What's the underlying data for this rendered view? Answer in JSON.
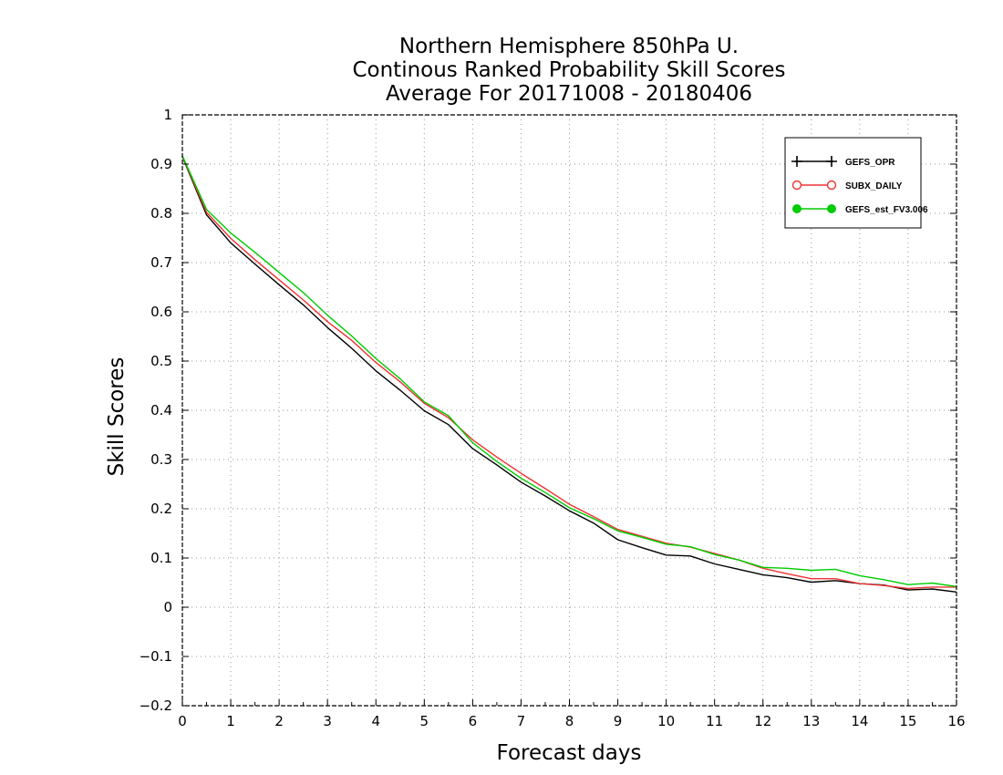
{
  "chart_data": {
    "type": "line",
    "title_lines": [
      "Northern Hemisphere 850hPa U.",
      "Continous Ranked Probability Skill Scores",
      "Average For 20171008 - 20180406"
    ],
    "xlabel": "Forecast days",
    "ylabel": "Skill Scores",
    "xlim": [
      0,
      16
    ],
    "ylim": [
      -0.2,
      1
    ],
    "xticks": [
      0,
      1,
      2,
      3,
      4,
      5,
      6,
      7,
      8,
      9,
      10,
      11,
      12,
      13,
      14,
      15,
      16
    ],
    "yticks": [
      -0.2,
      -0.1,
      0,
      0.1,
      0.2,
      0.3,
      0.4,
      0.5,
      0.6,
      0.7,
      0.8,
      0.9,
      1
    ],
    "ytick_labels": [
      "−0.2",
      "−0.1",
      "0",
      "0.1",
      "0.2",
      "0.3",
      "0.4",
      "0.5",
      "0.6",
      "0.7",
      "0.8",
      "0.9",
      "1"
    ],
    "grid": true,
    "legend_position": "top-right",
    "x": [
      0,
      0.5,
      1,
      1.5,
      2,
      2.5,
      3,
      3.5,
      4,
      4.5,
      5,
      5.5,
      6,
      6.5,
      7,
      7.5,
      8,
      8.5,
      9,
      9.5,
      10,
      10.5,
      11,
      11.5,
      12,
      12.5,
      13,
      13.5,
      14,
      14.5,
      15,
      15.5,
      16
    ],
    "series": [
      {
        "name": "GEFS_OPR",
        "color": "#000000",
        "marker": "plus",
        "values": [
          0.915,
          0.797,
          0.74,
          0.697,
          0.655,
          0.614,
          0.568,
          0.526,
          0.48,
          0.441,
          0.399,
          0.371,
          0.322,
          0.289,
          0.254,
          0.226,
          0.196,
          0.171,
          0.137,
          0.121,
          0.106,
          0.104,
          0.088,
          0.077,
          0.066,
          0.06,
          0.051,
          0.054,
          0.048,
          0.045,
          0.035,
          0.037,
          0.031
        ]
      },
      {
        "name": "SUBX_DAILY",
        "color": "#ee3333",
        "marker": "open-circle",
        "values": [
          0.916,
          0.802,
          0.749,
          0.706,
          0.665,
          0.624,
          0.58,
          0.542,
          0.497,
          0.458,
          0.414,
          0.385,
          0.34,
          0.305,
          0.272,
          0.241,
          0.209,
          0.184,
          0.158,
          0.144,
          0.13,
          0.122,
          0.109,
          0.096,
          0.079,
          0.068,
          0.058,
          0.058,
          0.048,
          0.044,
          0.038,
          0.041,
          0.041
        ]
      },
      {
        "name": "GEFS_est_FV3.006",
        "color": "#00cc00",
        "marker": "filled-circle",
        "values": [
          0.917,
          0.808,
          0.76,
          0.721,
          0.68,
          0.639,
          0.593,
          0.551,
          0.505,
          0.464,
          0.417,
          0.389,
          0.334,
          0.296,
          0.262,
          0.233,
          0.202,
          0.18,
          0.155,
          0.142,
          0.128,
          0.123,
          0.107,
          0.096,
          0.081,
          0.079,
          0.075,
          0.077,
          0.064,
          0.056,
          0.046,
          0.049,
          0.042
        ]
      }
    ]
  }
}
